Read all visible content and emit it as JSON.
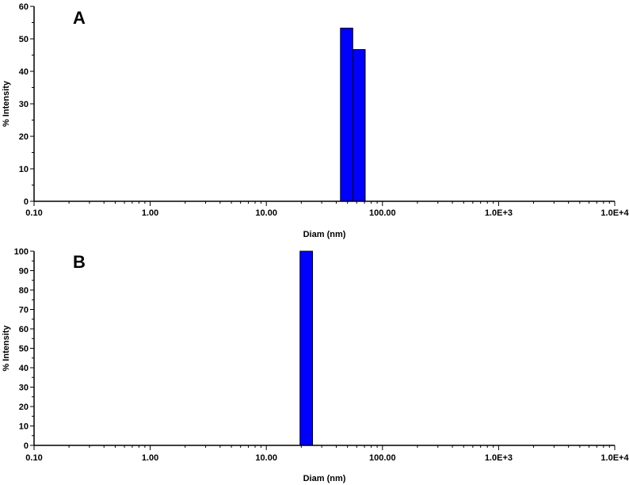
{
  "chart_data": [
    {
      "type": "bar",
      "panel_label": "A",
      "xlabel": "Diam (nm)",
      "ylabel": "% Intensity",
      "x_scale": "log",
      "xlim": [
        0.1,
        10000
      ],
      "ylim": [
        0,
        60
      ],
      "x_tick_labels": [
        "0.10",
        "1.00",
        "10.00",
        "100.00",
        "1.0E+3",
        "1.0E+4"
      ],
      "y_ticks": [
        0,
        10,
        20,
        30,
        40,
        50,
        60
      ],
      "color": "#0000ff",
      "bins": [
        {
          "x_from": 43.5,
          "x_to": 55.5,
          "value": 53.3
        },
        {
          "x_from": 55.5,
          "x_to": 71.0,
          "value": 46.7
        }
      ]
    },
    {
      "type": "bar",
      "panel_label": "B",
      "xlabel": "Diam (nm)",
      "ylabel": "% Intensity",
      "x_scale": "log",
      "xlim": [
        0.1,
        10000
      ],
      "ylim": [
        0,
        100
      ],
      "x_tick_labels": [
        "0.10",
        "1.00",
        "10.00",
        "100.00",
        "1.0E+3",
        "1.0E+4"
      ],
      "y_ticks": [
        0,
        10,
        20,
        30,
        40,
        50,
        60,
        70,
        80,
        90,
        100
      ],
      "color": "#0000ff",
      "bins": [
        {
          "x_from": 19.5,
          "x_to": 25.0,
          "value": 100
        }
      ]
    }
  ]
}
